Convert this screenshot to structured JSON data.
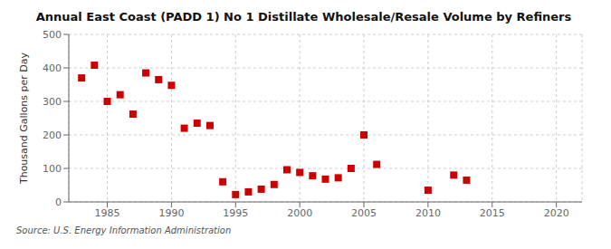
{
  "chart_data": {
    "type": "scatter",
    "title": "Annual East Coast (PADD 1) No 1 Distillate Wholesale/Resale Volume by Refiners",
    "ylabel": "Thousand Gallons per Day",
    "annotations": [
      "Source: U.S. Energy Information Administration"
    ],
    "x": [
      1983,
      1984,
      1985,
      1986,
      1987,
      1988,
      1989,
      1990,
      1991,
      1992,
      1993,
      1994,
      1995,
      1996,
      1997,
      1998,
      1999,
      2000,
      2001,
      2002,
      2003,
      2004,
      2005,
      2006,
      2010,
      2012,
      2013
    ],
    "values": [
      370,
      408,
      300,
      320,
      262,
      385,
      365,
      348,
      220,
      235,
      228,
      60,
      22,
      30,
      38,
      52,
      96,
      88,
      78,
      68,
      72,
      100,
      200,
      112,
      35,
      80,
      65
    ],
    "color": "#cc0000",
    "marker": "square",
    "xlim": [
      1982,
      2022
    ],
    "ylim": [
      0,
      500
    ],
    "xticks": [
      1985,
      1990,
      1995,
      2000,
      2005,
      2010,
      2015,
      2020
    ],
    "yticks": [
      0,
      100,
      200,
      300,
      400,
      500
    ],
    "grid": true
  }
}
